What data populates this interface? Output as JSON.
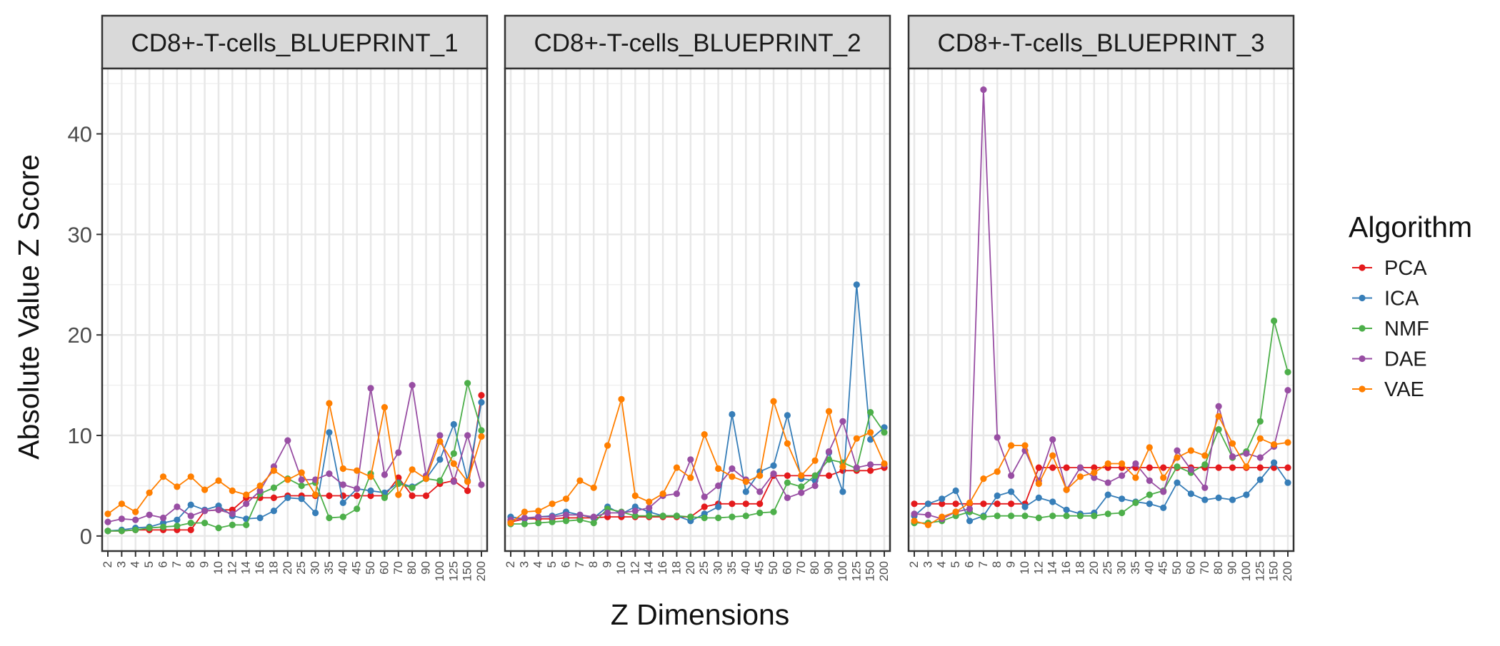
{
  "chart_data": {
    "type": "line",
    "facet_titles": [
      "CD8+-T-cells_BLUEPRINT_1",
      "CD8+-T-cells_BLUEPRINT_2",
      "CD8+-T-cells_BLUEPRINT_3"
    ],
    "xlabel": "Z Dimensions",
    "ylabel": "Absolute Value Z Score",
    "categories": [
      "2",
      "3",
      "4",
      "5",
      "6",
      "7",
      "8",
      "9",
      "10",
      "12",
      "14",
      "16",
      "18",
      "20",
      "25",
      "30",
      "35",
      "40",
      "45",
      "50",
      "60",
      "70",
      "80",
      "90",
      "100",
      "125",
      "150",
      "200"
    ],
    "yticks": [
      0,
      10,
      20,
      30,
      40
    ],
    "ylim": [
      -1.5,
      46.5
    ],
    "grid": true,
    "legend_title": "Algorithm",
    "legend_position": "right",
    "series_colors": {
      "PCA": "#e41a1c",
      "ICA": "#377eb8",
      "NMF": "#4daf4a",
      "DAE": "#984ea3",
      "VAE": "#ff7f00"
    },
    "panels": [
      {
        "title": "CD8+-T-cells_BLUEPRINT_1",
        "series": [
          {
            "name": "PCA",
            "values": [
              0.5,
              0.5,
              0.6,
              0.6,
              0.6,
              0.6,
              0.6,
              2.5,
              2.6,
              2.6,
              3.8,
              3.8,
              3.8,
              4.0,
              4.0,
              4.0,
              4.0,
              4.0,
              4.0,
              4.0,
              4.0,
              5.8,
              4.0,
              4.0,
              5.2,
              5.5,
              4.5,
              14.0
            ]
          },
          {
            "name": "ICA",
            "values": [
              0.5,
              0.6,
              0.8,
              0.9,
              1.3,
              1.6,
              3.1,
              2.6,
              3.0,
              2.0,
              1.7,
              1.8,
              2.5,
              3.8,
              3.7,
              2.3,
              10.3,
              3.3,
              4.7,
              4.5,
              4.3,
              5.3,
              4.9,
              5.7,
              7.6,
              11.1,
              5.5,
              13.3
            ]
          },
          {
            "name": "NMF",
            "values": [
              0.5,
              0.5,
              0.6,
              0.8,
              0.9,
              1.0,
              1.3,
              1.3,
              0.8,
              1.1,
              1.1,
              4.2,
              4.8,
              5.7,
              5.0,
              5.3,
              1.8,
              1.9,
              2.7,
              6.2,
              3.8,
              5.2,
              4.8,
              5.7,
              5.5,
              8.2,
              15.2,
              10.5
            ]
          },
          {
            "name": "DAE",
            "values": [
              1.4,
              1.7,
              1.6,
              2.1,
              1.8,
              2.9,
              2.0,
              2.5,
              2.6,
              2.2,
              3.2,
              4.5,
              6.9,
              9.5,
              5.6,
              5.6,
              6.2,
              5.1,
              4.7,
              14.7,
              6.1,
              8.3,
              15.0,
              6.0,
              10.0,
              5.4,
              10.0,
              5.1
            ]
          },
          {
            "name": "VAE",
            "values": [
              2.2,
              3.2,
              2.4,
              4.3,
              5.9,
              4.9,
              5.9,
              4.6,
              5.5,
              4.5,
              4.1,
              5.0,
              6.5,
              5.6,
              6.3,
              4.1,
              13.2,
              6.7,
              6.5,
              5.9,
              12.8,
              4.1,
              6.6,
              5.7,
              9.4,
              7.2,
              5.4,
              9.9
            ]
          }
        ]
      },
      {
        "title": "CD8+-T-cells_BLUEPRINT_2",
        "series": [
          {
            "name": "PCA",
            "values": [
              1.4,
              1.7,
              1.7,
              1.7,
              1.8,
              1.8,
              1.8,
              1.9,
              1.9,
              1.9,
              1.9,
              1.9,
              1.9,
              1.9,
              2.9,
              3.2,
              3.2,
              3.2,
              3.2,
              6.0,
              6.0,
              6.0,
              6.0,
              6.0,
              6.5,
              6.5,
              6.5,
              6.8
            ]
          },
          {
            "name": "ICA",
            "values": [
              1.9,
              1.7,
              1.9,
              2.0,
              2.4,
              2.1,
              1.8,
              2.9,
              2.2,
              2.9,
              2.4,
              2.0,
              2.0,
              1.5,
              2.2,
              2.9,
              12.1,
              4.4,
              6.4,
              7.0,
              12.0,
              5.7,
              5.5,
              8.3,
              4.4,
              25.0,
              9.6,
              10.8
            ]
          },
          {
            "name": "NMF",
            "values": [
              1.2,
              1.2,
              1.3,
              1.4,
              1.5,
              1.6,
              1.3,
              2.7,
              2.4,
              2.0,
              2.0,
              2.0,
              2.0,
              1.9,
              1.8,
              1.8,
              1.9,
              2.0,
              2.3,
              2.4,
              5.3,
              4.9,
              6.0,
              7.6,
              7.3,
              6.7,
              12.3,
              10.3
            ]
          },
          {
            "name": "DAE",
            "values": [
              1.6,
              1.8,
              1.9,
              1.9,
              2.1,
              2.1,
              1.9,
              2.3,
              2.3,
              2.5,
              2.8,
              4.0,
              4.2,
              7.6,
              3.9,
              5.0,
              6.7,
              5.6,
              4.4,
              6.2,
              3.8,
              4.3,
              5.0,
              8.4,
              11.4,
              6.8,
              7.1,
              7.1
            ]
          },
          {
            "name": "VAE",
            "values": [
              1.3,
              2.4,
              2.5,
              3.2,
              3.7,
              5.5,
              4.8,
              9.0,
              13.6,
              4.0,
              3.4,
              4.2,
              6.8,
              5.8,
              10.1,
              6.7,
              5.9,
              5.4,
              6.0,
              13.4,
              9.2,
              6.0,
              7.5,
              12.4,
              6.9,
              9.7,
              10.3,
              7.2
            ]
          }
        ]
      },
      {
        "title": "CD8+-T-cells_BLUEPRINT_3",
        "series": [
          {
            "name": "PCA",
            "values": [
              3.2,
              3.2,
              3.2,
              3.2,
              3.2,
              3.2,
              3.2,
              3.2,
              3.2,
              6.8,
              6.8,
              6.8,
              6.8,
              6.8,
              6.8,
              6.8,
              6.8,
              6.8,
              6.8,
              6.8,
              6.8,
              6.8,
              6.8,
              6.8,
              6.8,
              6.8,
              6.8,
              6.8
            ]
          },
          {
            "name": "ICA",
            "values": [
              2.0,
              3.2,
              3.7,
              4.5,
              1.5,
              2.0,
              4.0,
              4.4,
              2.9,
              3.8,
              3.4,
              2.6,
              2.2,
              2.3,
              4.1,
              3.7,
              3.4,
              3.2,
              2.8,
              5.3,
              4.2,
              3.6,
              3.8,
              3.6,
              4.1,
              5.6,
              7.3,
              5.3
            ]
          },
          {
            "name": "NMF",
            "values": [
              1.3,
              1.3,
              1.5,
              2.0,
              2.4,
              1.9,
              2.0,
              2.0,
              2.0,
              1.8,
              2.0,
              2.0,
              2.0,
              2.0,
              2.2,
              2.3,
              3.3,
              4.1,
              4.5,
              6.9,
              6.3,
              7.1,
              10.6,
              7.8,
              8.4,
              11.4,
              21.4,
              16.3
            ]
          },
          {
            "name": "DAE",
            "values": [
              2.2,
              2.1,
              1.7,
              2.4,
              2.7,
              44.4,
              9.8,
              6.0,
              8.5,
              5.5,
              9.6,
              4.6,
              6.8,
              5.8,
              5.3,
              6.0,
              7.2,
              5.5,
              4.4,
              8.5,
              6.6,
              4.8,
              12.9,
              7.9,
              8.2,
              7.8,
              8.9,
              14.5
            ]
          },
          {
            "name": "VAE",
            "values": [
              1.5,
              1.1,
              1.9,
              2.4,
              3.3,
              5.7,
              6.4,
              9.0,
              9.0,
              5.2,
              8.0,
              4.6,
              5.9,
              6.3,
              7.2,
              7.2,
              5.8,
              8.8,
              5.8,
              7.8,
              8.5,
              8.0,
              11.9,
              9.2,
              6.9,
              9.7,
              9.1,
              9.3
            ]
          }
        ]
      }
    ]
  }
}
